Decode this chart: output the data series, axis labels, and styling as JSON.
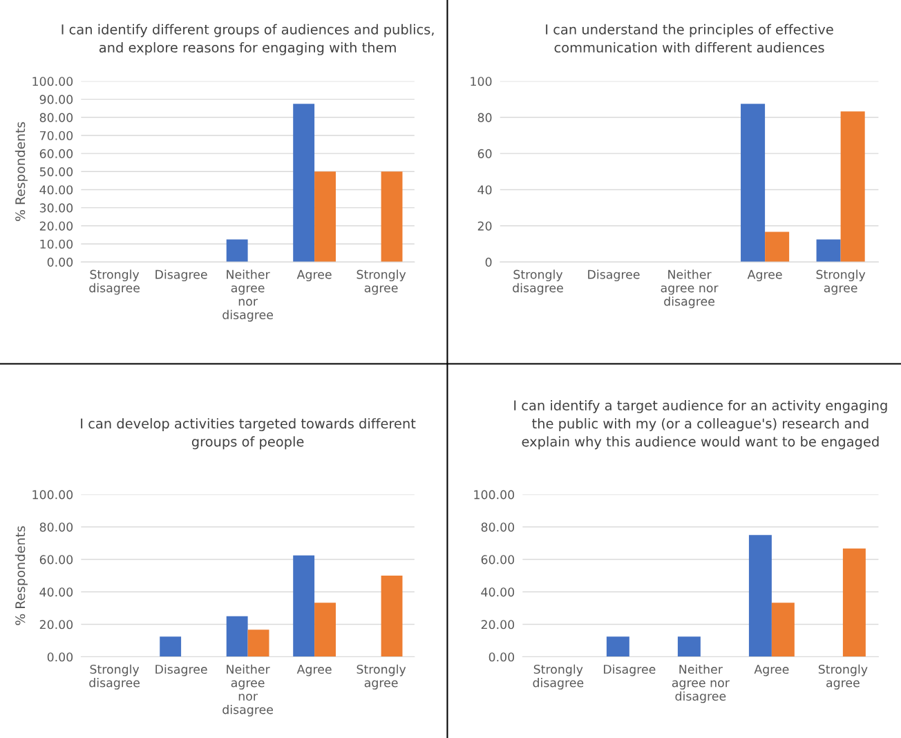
{
  "chart_data": [
    {
      "type": "bar",
      "title": "I can identify different groups of audiences and publics,\nand explore reasons for engaging with them",
      "ylabel": "% Respondents",
      "categories": [
        "Strongly\ndisagree",
        "Disagree",
        "Neither\nagree\nnor\ndisagree",
        "Agree",
        "Strongly\nagree"
      ],
      "series": [
        {
          "color": "#4472c4",
          "values": [
            0,
            0,
            12.5,
            87.5,
            0
          ]
        },
        {
          "color": "#ed7d31",
          "values": [
            0,
            0,
            0,
            50,
            50
          ]
        }
      ],
      "ylim": [
        0,
        100
      ],
      "yticks": [
        {
          "value": 0,
          "label": "0.00"
        },
        {
          "value": 10,
          "label": "10.00"
        },
        {
          "value": 20,
          "label": "20.00"
        },
        {
          "value": 30,
          "label": "30.00"
        },
        {
          "value": 40,
          "label": "40.00"
        },
        {
          "value": 50,
          "label": "50.00"
        },
        {
          "value": 60,
          "label": "60.00"
        },
        {
          "value": 70,
          "label": "70.00"
        },
        {
          "value": 80,
          "label": "80.00"
        },
        {
          "value": 90,
          "label": "90.00"
        },
        {
          "value": 100,
          "label": "100.00"
        }
      ],
      "grid": "y",
      "legend": false
    },
    {
      "type": "bar",
      "title": "I can understand the principles of effective\ncommunication with different audiences",
      "categories": [
        "Strongly\ndisagree",
        "Disagree",
        "Neither\nagree nor\ndisagree",
        "Agree",
        "Strongly\nagree"
      ],
      "series": [
        {
          "color": "#4472c4",
          "values": [
            0,
            0,
            0,
            87.5,
            12.5
          ]
        },
        {
          "color": "#ed7d31",
          "values": [
            0,
            0,
            0,
            16.7,
            83.3
          ]
        }
      ],
      "ylim": [
        0,
        100
      ],
      "yticks": [
        0,
        20,
        40,
        60,
        80,
        100
      ],
      "grid": "y",
      "legend": false
    },
    {
      "type": "bar",
      "title": "I can develop activities targeted towards different\ngroups of people",
      "ylabel": "% Respondents",
      "categories": [
        "Strongly\ndisagree",
        "Disagree",
        "Neither\nagree\nnor\ndisagree",
        "Agree",
        "Strongly\nagree"
      ],
      "series": [
        {
          "color": "#4472c4",
          "values": [
            0,
            12.5,
            25,
            62.5,
            0
          ]
        },
        {
          "color": "#ed7d31",
          "values": [
            0,
            0,
            16.7,
            33.3,
            50
          ]
        }
      ],
      "ylim": [
        0,
        100
      ],
      "yticks": [
        {
          "value": 0,
          "label": "0.00"
        },
        {
          "value": 20,
          "label": "20.00"
        },
        {
          "value": 40,
          "label": "40.00"
        },
        {
          "value": 60,
          "label": "60.00"
        },
        {
          "value": 80,
          "label": "80.00"
        },
        {
          "value": 100,
          "label": "100.00"
        }
      ],
      "grid": "y",
      "legend": false
    },
    {
      "type": "bar",
      "title": "I can identify a target audience for an activity engaging\nthe public with my (or a colleague's) research and\nexplain why this audience would want to be engaged",
      "categories": [
        "Strongly\ndisagree",
        "Disagree",
        "Neither\nagree nor\ndisagree",
        "Agree",
        "Strongly\nagree"
      ],
      "series": [
        {
          "color": "#4472c4",
          "values": [
            0,
            12.5,
            12.5,
            75,
            0
          ]
        },
        {
          "color": "#ed7d31",
          "values": [
            0,
            0,
            0,
            33.3,
            66.7
          ]
        }
      ],
      "ylim": [
        0,
        100
      ],
      "yticks": [
        {
          "value": 0,
          "label": "0.00"
        },
        {
          "value": 20,
          "label": "20.00"
        },
        {
          "value": 40,
          "label": "40.00"
        },
        {
          "value": 60,
          "label": "60.00"
        },
        {
          "value": 80,
          "label": "80.00"
        },
        {
          "value": 100,
          "label": "100.00"
        }
      ],
      "grid": "y",
      "legend": false
    }
  ]
}
